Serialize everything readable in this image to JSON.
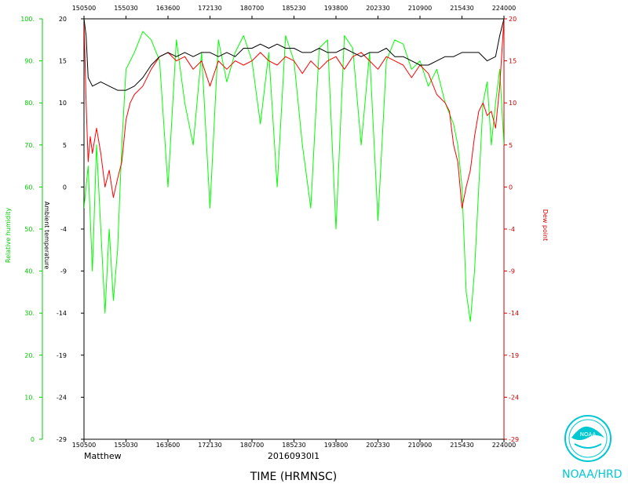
{
  "chart_data": {
    "type": "line",
    "storm_name": "Matthew",
    "flight_id": "20160930I1",
    "xlabel": "TIME (HRMNSC)",
    "x_ticks": [
      "150500",
      "155030",
      "163600",
      "172130",
      "180700",
      "185230",
      "193800",
      "202330",
      "210900",
      "215430",
      "224000"
    ],
    "x_range": [
      "150500",
      "224000"
    ],
    "axes": {
      "relative_humidity": {
        "label": "Relative humidity",
        "color": "#00cc00",
        "range": [
          0,
          100
        ],
        "ticks": [
          "0",
          "10.",
          "20.",
          "30.",
          "40.",
          "50.",
          "60.",
          "70.",
          "80.",
          "90.",
          "100."
        ]
      },
      "ambient_temperature": {
        "label": "Ambient temperature",
        "color": "#000000",
        "range": [
          -29,
          20
        ],
        "ticks": [
          "-29",
          "-24",
          "-19",
          "-14",
          "-9",
          "-4",
          "0",
          "5",
          "10",
          "15",
          "20"
        ]
      },
      "dew_point": {
        "label": "Dew point",
        "color": "#cc0000",
        "range": [
          -29,
          20
        ],
        "ticks": [
          "-29",
          "-24",
          "-19",
          "-14",
          "-9",
          "-4",
          "0",
          "5",
          "10",
          "15",
          "20"
        ]
      }
    },
    "series": [
      {
        "name": "Relative humidity",
        "axis": "relative_humidity",
        "color": "#00ff00",
        "x_fraction": [
          0,
          0.01,
          0.02,
          0.03,
          0.04,
          0.05,
          0.06,
          0.07,
          0.08,
          0.09,
          0.1,
          0.12,
          0.14,
          0.16,
          0.18,
          0.2,
          0.22,
          0.24,
          0.26,
          0.28,
          0.3,
          0.32,
          0.34,
          0.36,
          0.38,
          0.4,
          0.42,
          0.44,
          0.46,
          0.48,
          0.5,
          0.52,
          0.54,
          0.56,
          0.58,
          0.6,
          0.62,
          0.64,
          0.66,
          0.68,
          0.7,
          0.72,
          0.74,
          0.76,
          0.78,
          0.8,
          0.82,
          0.84,
          0.86,
          0.88,
          0.89,
          0.9,
          0.91,
          0.92,
          0.93,
          0.94,
          0.95,
          0.96,
          0.97,
          0.98,
          0.99,
          1.0
        ],
        "values": [
          55,
          65,
          40,
          70,
          50,
          30,
          50,
          33,
          45,
          70,
          88,
          92,
          97,
          95,
          90,
          60,
          95,
          80,
          70,
          92,
          55,
          95,
          85,
          92,
          96,
          90,
          75,
          92,
          60,
          96,
          90,
          70,
          55,
          93,
          95,
          50,
          96,
          93,
          70,
          92,
          52,
          90,
          95,
          94,
          88,
          90,
          84,
          88,
          80,
          75,
          70,
          60,
          35,
          28,
          40,
          60,
          80,
          85,
          70,
          80,
          88,
          70
        ]
      },
      {
        "name": "Ambient temperature",
        "axis": "ambient_temperature",
        "color": "#000000",
        "x_fraction": [
          0,
          0.005,
          0.01,
          0.02,
          0.04,
          0.06,
          0.08,
          0.1,
          0.12,
          0.14,
          0.16,
          0.18,
          0.2,
          0.22,
          0.24,
          0.26,
          0.28,
          0.3,
          0.32,
          0.34,
          0.36,
          0.38,
          0.4,
          0.42,
          0.44,
          0.46,
          0.48,
          0.5,
          0.52,
          0.54,
          0.56,
          0.58,
          0.6,
          0.62,
          0.64,
          0.66,
          0.68,
          0.7,
          0.72,
          0.74,
          0.76,
          0.78,
          0.8,
          0.82,
          0.84,
          0.86,
          0.88,
          0.9,
          0.92,
          0.94,
          0.96,
          0.98,
          0.99,
          1.0
        ],
        "values": [
          20,
          18,
          13,
          12,
          12.5,
          12,
          11.5,
          11.5,
          12,
          13,
          14.5,
          15.5,
          16,
          15.5,
          16,
          15.5,
          16,
          16,
          15.5,
          16,
          15.5,
          16.5,
          16.5,
          17,
          16.5,
          17,
          16.5,
          16.5,
          16,
          16,
          16.5,
          16,
          16,
          16.5,
          16,
          15.5,
          16,
          16,
          16.5,
          15.5,
          15.5,
          15,
          14.5,
          14.5,
          15,
          15.5,
          15.5,
          16,
          16,
          16,
          15,
          15.5,
          18,
          20
        ]
      },
      {
        "name": "Dew point",
        "axis": "dew_point",
        "color": "#ff0000",
        "x_fraction": [
          0,
          0.005,
          0.01,
          0.015,
          0.02,
          0.03,
          0.04,
          0.05,
          0.06,
          0.07,
          0.08,
          0.09,
          0.1,
          0.11,
          0.12,
          0.14,
          0.16,
          0.18,
          0.2,
          0.22,
          0.24,
          0.26,
          0.28,
          0.3,
          0.32,
          0.34,
          0.36,
          0.38,
          0.4,
          0.42,
          0.44,
          0.46,
          0.48,
          0.5,
          0.52,
          0.54,
          0.56,
          0.58,
          0.6,
          0.62,
          0.64,
          0.66,
          0.68,
          0.7,
          0.72,
          0.74,
          0.76,
          0.78,
          0.8,
          0.82,
          0.84,
          0.86,
          0.87,
          0.88,
          0.89,
          0.9,
          0.91,
          0.92,
          0.93,
          0.94,
          0.95,
          0.96,
          0.97,
          0.98,
          0.99,
          1.0
        ],
        "values": [
          20,
          10,
          3,
          6,
          4,
          7,
          4,
          0,
          2,
          -1,
          1,
          3,
          8,
          10,
          11,
          12,
          14,
          15.5,
          16,
          15,
          15.5,
          14,
          15,
          12,
          15,
          14,
          15,
          14.5,
          15,
          16,
          15,
          14.5,
          15.5,
          15,
          13.5,
          15,
          14,
          15,
          15.5,
          14,
          15.5,
          16,
          15,
          14,
          15.5,
          15,
          14.5,
          13,
          14.5,
          13.5,
          11,
          10,
          9,
          5,
          3,
          -2,
          0,
          2,
          6,
          9,
          10,
          8.5,
          9,
          7,
          12,
          20
        ]
      }
    ]
  },
  "branding": {
    "label": "NOAA/HRD",
    "logo_text": "NOAA"
  }
}
